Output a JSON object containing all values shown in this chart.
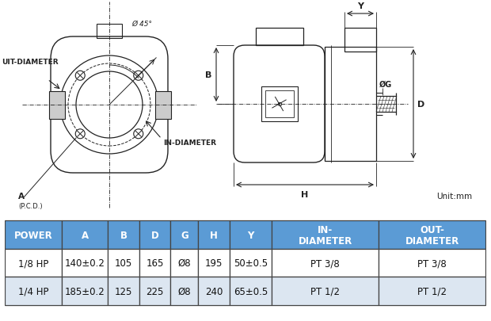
{
  "bg_color": "#ffffff",
  "table_header_bg": "#5b9bd5",
  "table_row1_bg": "#ffffff",
  "table_row2_bg": "#dce6f1",
  "table_border_color": "#444444",
  "unit_text": "Unit:mm",
  "headers": [
    "POWER",
    "A",
    "B",
    "D",
    "G",
    "H",
    "Y",
    "IN-\nDIAMETER",
    "OUT-\nDIAMETER"
  ],
  "rows": [
    [
      "1/8 HP",
      "140±0.2",
      "105",
      "165",
      "Ø8",
      "195",
      "50±0.5",
      "PT 3/8",
      "PT 3/8"
    ],
    [
      "1/4 HP",
      "185±0.2",
      "125",
      "225",
      "Ø8",
      "240",
      "65±0.5",
      "PT 1/2",
      "PT 1/2"
    ]
  ],
  "line_color": "#222222",
  "header_fontsize": 8.5,
  "row_fontsize": 8.5
}
